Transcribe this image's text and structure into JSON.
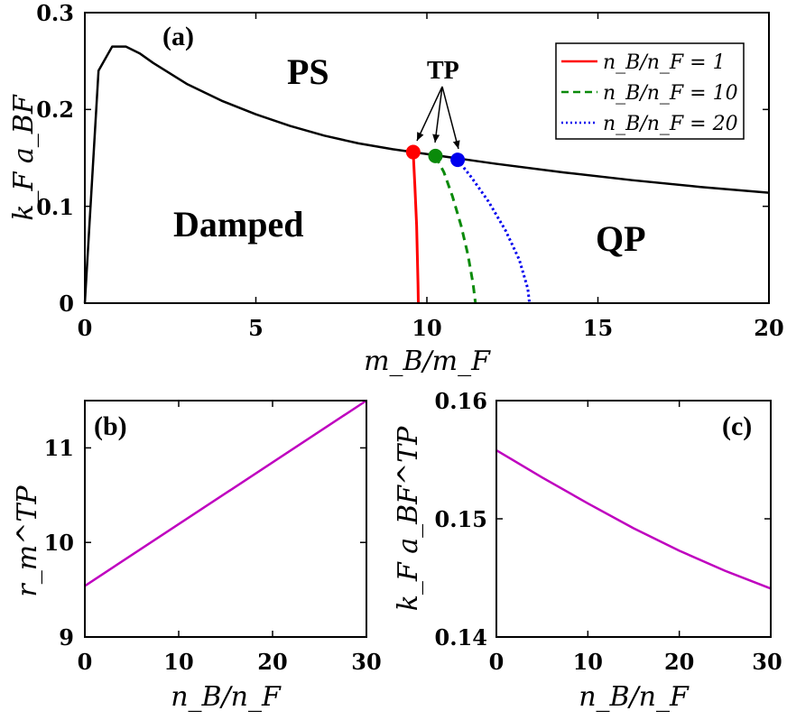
{
  "colors": {
    "boundary": "#000000",
    "red": "#ff0000",
    "green": "#0a8a0a",
    "blue": "#0000ee",
    "magenta": "#bf00bf"
  },
  "chart_data": [
    {
      "panel": "(a)",
      "type": "line",
      "xlabel": "m_B/m_F",
      "ylabel": "k_F a_BF",
      "xlim": [
        0,
        20
      ],
      "ylim": [
        0,
        0.3
      ],
      "xticks": [
        "0",
        "5",
        "10",
        "15",
        "20"
      ],
      "yticks": [
        "0",
        "0.1",
        "0.2",
        "0.3"
      ],
      "regions": [
        "PS",
        "Damped",
        "QP"
      ],
      "annotation": "TP",
      "series": [
        {
          "name": "boundary",
          "legend": "",
          "color": "#000000",
          "style": "solid",
          "x": [
            0,
            0.4,
            0.8,
            1.2,
            1.6,
            2,
            3,
            4,
            5,
            6,
            7,
            8,
            9,
            10,
            11,
            12,
            14,
            16,
            18,
            20
          ],
          "y": [
            0,
            0.24,
            0.265,
            0.265,
            0.258,
            0.248,
            0.226,
            0.209,
            0.195,
            0.183,
            0.173,
            0.165,
            0.159,
            0.154,
            0.149,
            0.144,
            0.135,
            0.127,
            0.12,
            0.114
          ]
        },
        {
          "name": "nB/nF = 1",
          "legend": "n_B/n_F = 1",
          "color": "#ff0000",
          "style": "solid",
          "x": [
            9.6,
            9.65,
            9.7,
            9.72,
            9.74,
            9.75
          ],
          "y": [
            0.156,
            0.12,
            0.08,
            0.05,
            0.02,
            0
          ]
        },
        {
          "name": "nB/nF = 10",
          "legend": "n_B/n_F = 10",
          "color": "#0a8a0a",
          "style": "dashed",
          "x": [
            10.25,
            10.5,
            10.75,
            11.0,
            11.2,
            11.35,
            11.42
          ],
          "y": [
            0.152,
            0.135,
            0.11,
            0.08,
            0.05,
            0.02,
            0
          ]
        },
        {
          "name": "nB/nF = 20",
          "legend": "n_B/n_F = 20",
          "color": "#0000ee",
          "style": "dotted",
          "x": [
            10.9,
            11.3,
            11.8,
            12.3,
            12.7,
            12.95,
            13.0
          ],
          "y": [
            0.148,
            0.13,
            0.105,
            0.075,
            0.045,
            0.015,
            0
          ]
        }
      ],
      "points": [
        {
          "label": "TP n_B/n_F = 1",
          "x": 9.6,
          "y": 0.156,
          "color": "#ff0000"
        },
        {
          "label": "TP n_B/n_F = 10",
          "x": 10.25,
          "y": 0.152,
          "color": "#0a8a0a"
        },
        {
          "label": "TP n_B/n_F = 20",
          "x": 10.9,
          "y": 0.148,
          "color": "#0000ee"
        }
      ]
    },
    {
      "panel": "(b)",
      "type": "line",
      "xlabel": "n_B/n_F",
      "ylabel": "r_m^TP",
      "xlim": [
        0,
        30
      ],
      "ylim": [
        9,
        11.5
      ],
      "xticks": [
        "0",
        "10",
        "20",
        "30"
      ],
      "yticks": [
        "9",
        "10",
        "11"
      ],
      "series": [
        {
          "name": "r_m^TP",
          "color": "#bf00bf",
          "x": [
            0,
            30
          ],
          "y": [
            9.54,
            11.5
          ]
        }
      ]
    },
    {
      "panel": "(c)",
      "type": "line",
      "xlabel": "n_B/n_F",
      "ylabel": "k_F a_BF^TP",
      "xlim": [
        0,
        30
      ],
      "ylim": [
        0.14,
        0.16
      ],
      "xticks": [
        "0",
        "10",
        "20",
        "30"
      ],
      "yticks": [
        "0.14",
        "0.15",
        "0.16"
      ],
      "series": [
        {
          "name": "k_F a_BF^TP",
          "color": "#bf00bf",
          "x": [
            0,
            5,
            10,
            15,
            20,
            25,
            30
          ],
          "y": [
            0.1558,
            0.1535,
            0.1513,
            0.1492,
            0.1473,
            0.1456,
            0.1441
          ]
        }
      ]
    }
  ]
}
